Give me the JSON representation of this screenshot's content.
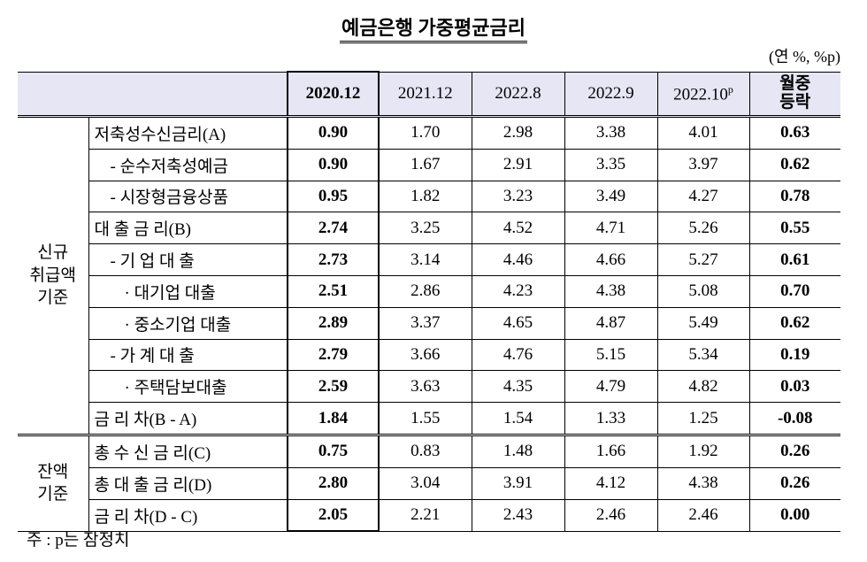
{
  "title": "예금은행 가중평균금리",
  "unit": "(연 %, %p)",
  "table": {
    "columns": [
      "2020.12",
      "2021.12",
      "2022.8",
      "2022.9",
      {
        "text": "2022.10",
        "sup": "p"
      },
      {
        "lines": [
          "월중",
          "등락"
        ]
      }
    ],
    "groups": [
      {
        "label": [
          "신규",
          "취급액",
          "기준"
        ],
        "rows": [
          {
            "label": "저축성수신금리(A)",
            "values": [
              "0.90",
              "1.70",
              "2.98",
              "3.38",
              "4.01",
              "0.63"
            ]
          },
          {
            "label": "- 순수저축성예금",
            "values": [
              "0.90",
              "1.67",
              "2.91",
              "3.35",
              "3.97",
              "0.62"
            ]
          },
          {
            "label": "- 시장형금융상품",
            "values": [
              "0.95",
              "1.82",
              "3.23",
              "3.49",
              "4.27",
              "0.78"
            ]
          },
          {
            "label": "대 출 금 리(B)",
            "values": [
              "2.74",
              "3.25",
              "4.52",
              "4.71",
              "5.26",
              "0.55"
            ]
          },
          {
            "label": "- 기 업 대 출",
            "values": [
              "2.73",
              "3.14",
              "4.46",
              "4.66",
              "5.27",
              "0.61"
            ]
          },
          {
            "label": "· 대기업 대출",
            "values": [
              "2.51",
              "2.86",
              "4.23",
              "4.38",
              "5.08",
              "0.70"
            ]
          },
          {
            "label": "· 중소기업 대출",
            "values": [
              "2.89",
              "3.37",
              "4.65",
              "4.87",
              "5.49",
              "0.62"
            ]
          },
          {
            "label": "- 가 계 대 출",
            "values": [
              "2.79",
              "3.66",
              "4.76",
              "5.15",
              "5.34",
              "0.19"
            ]
          },
          {
            "label": "· 주택담보대출",
            "values": [
              "2.59",
              "3.63",
              "4.35",
              "4.79",
              "4.82",
              "0.03"
            ]
          },
          {
            "label": "금 리 차(B - A)",
            "values": [
              "1.84",
              "1.55",
              "1.54",
              "1.33",
              "1.25",
              "-0.08"
            ]
          }
        ]
      },
      {
        "label": [
          "잔액",
          "기준"
        ],
        "rows": [
          {
            "label": "총 수 신 금 리(C)",
            "values": [
              "0.75",
              "0.83",
              "1.48",
              "1.66",
              "1.92",
              "0.26"
            ]
          },
          {
            "label": "총 대 출 금 리(D)",
            "values": [
              "2.80",
              "3.04",
              "3.91",
              "4.12",
              "4.38",
              "0.26"
            ]
          },
          {
            "label": "금 리 차(D - C)",
            "values": [
              "2.05",
              "2.21",
              "2.43",
              "2.46",
              "2.46",
              "0.00"
            ]
          }
        ]
      }
    ]
  },
  "note": "주 : p는 잠정치"
}
